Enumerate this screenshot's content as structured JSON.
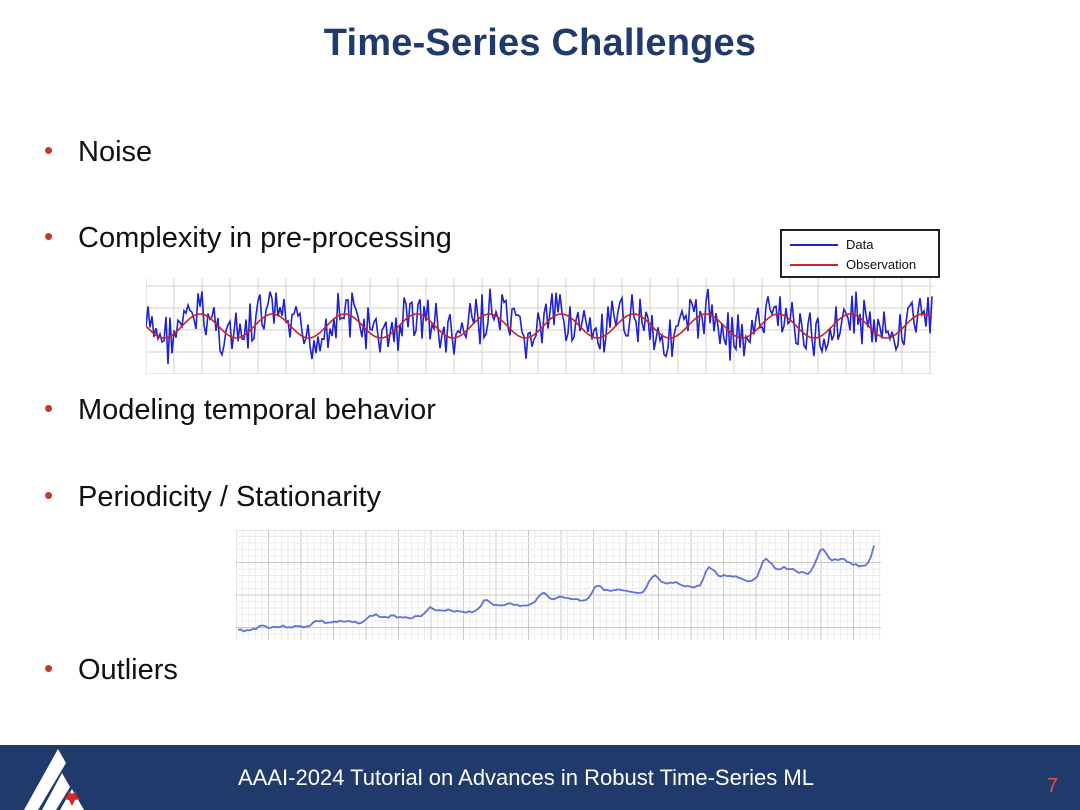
{
  "slide": {
    "title": "Time-Series Challenges",
    "bullets": [
      "Noise",
      "Complexity in pre-processing",
      "Modeling temporal behavior",
      "Periodicity / Stationarity",
      "Outliers"
    ]
  },
  "legend": {
    "items": [
      {
        "label": "Data",
        "color": "#2222cc"
      },
      {
        "label": "Observation",
        "color": "#cc2222"
      }
    ]
  },
  "footer": {
    "text": "AAAI-2024  Tutorial on Advances in Robust Time-Series ML",
    "page_number": "7"
  },
  "colors": {
    "title": "#1f3a6b",
    "footer_bg": "#1f3a6b",
    "bullet": "#c0392b",
    "page_number": "#e74c3c"
  }
}
